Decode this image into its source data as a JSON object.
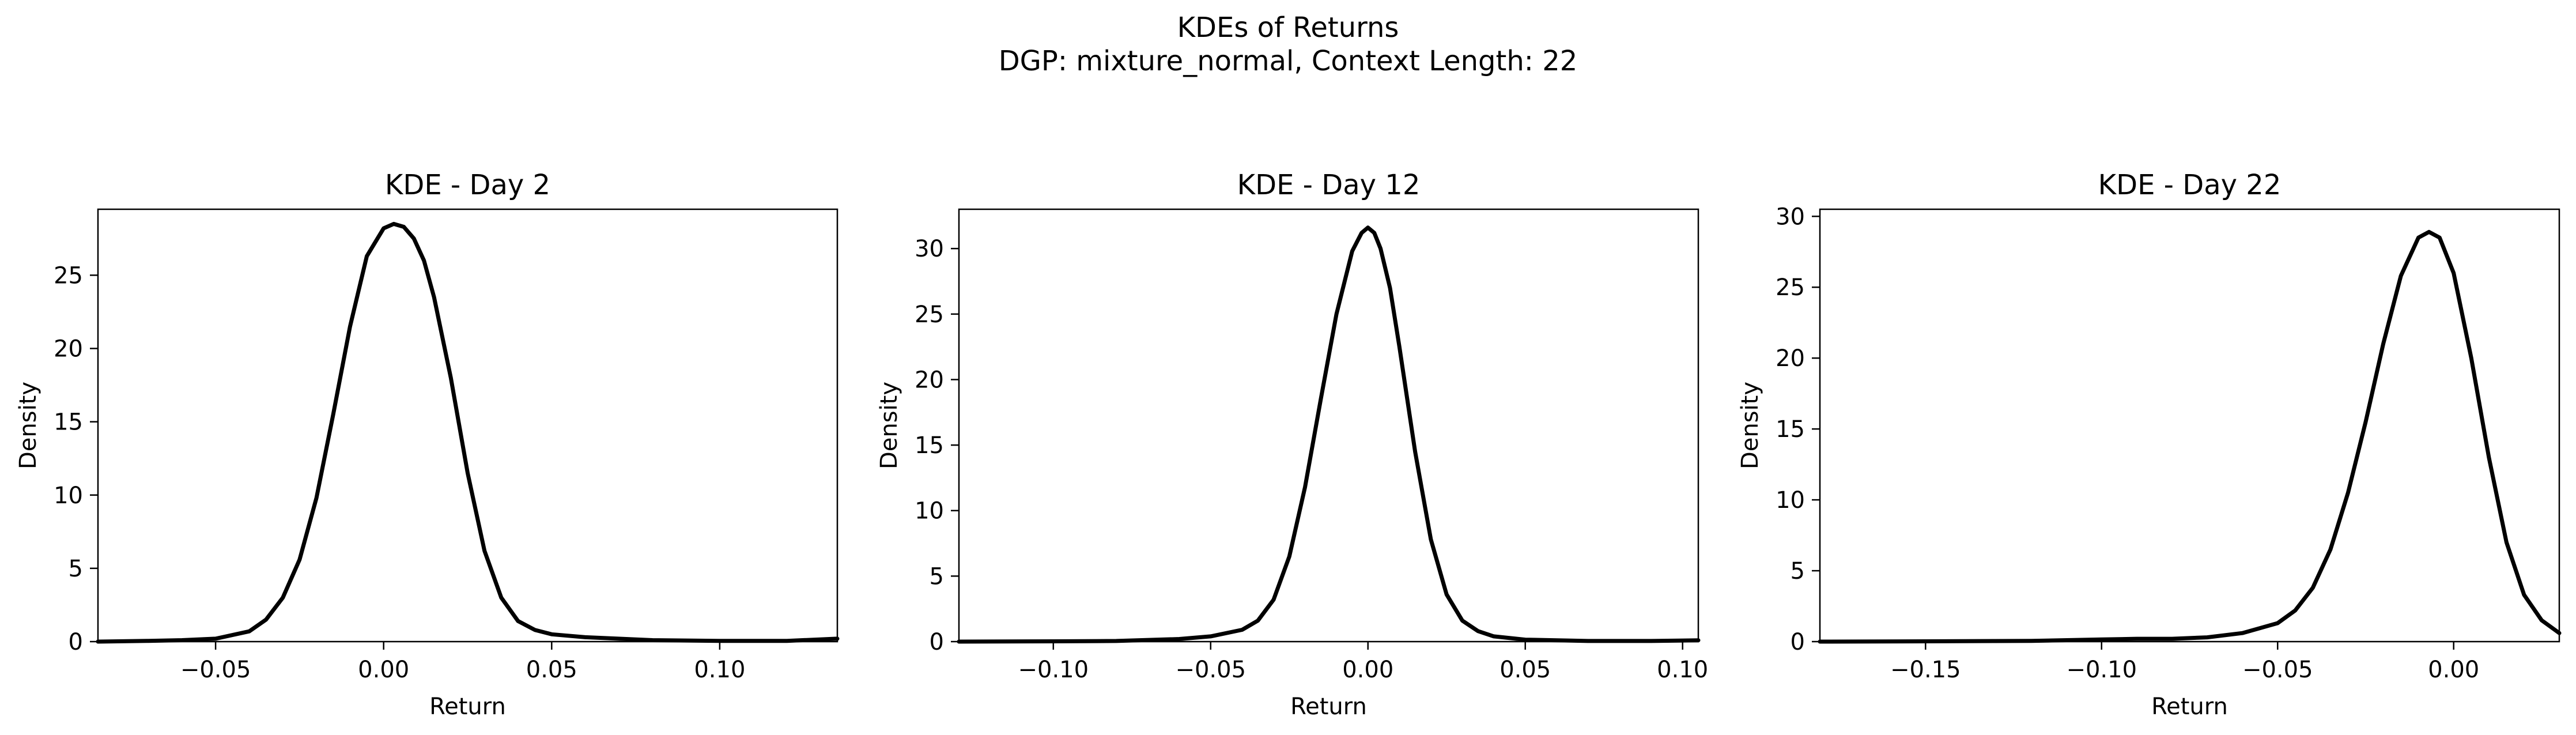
{
  "figure": {
    "title_line1": "KDEs of Returns",
    "title_line2": "DGP: mixture_normal, Context Length: 22"
  },
  "chart_data": [
    {
      "type": "line",
      "title": "KDE - Day 2",
      "xlabel": "Return",
      "ylabel": "Density",
      "xlim": [
        -0.085,
        0.135
      ],
      "ylim": [
        0,
        29.5
      ],
      "xticks": [
        -0.05,
        0.0,
        0.05,
        0.1
      ],
      "xtick_labels": [
        "−0.05",
        "0.00",
        "0.05",
        "0.10"
      ],
      "yticks": [
        0,
        5,
        10,
        15,
        20,
        25
      ],
      "ytick_labels": [
        "0",
        "5",
        "10",
        "15",
        "20",
        "25"
      ],
      "grid": false,
      "series": [
        {
          "color": "#000000",
          "x": [
            -0.085,
            -0.07,
            -0.06,
            -0.05,
            -0.04,
            -0.035,
            -0.03,
            -0.025,
            -0.02,
            -0.015,
            -0.01,
            -0.005,
            0.0,
            0.003,
            0.006,
            0.009,
            0.012,
            0.015,
            0.02,
            0.025,
            0.03,
            0.035,
            0.04,
            0.045,
            0.05,
            0.06,
            0.08,
            0.1,
            0.12,
            0.135
          ],
          "y": [
            0.0,
            0.05,
            0.1,
            0.2,
            0.7,
            1.5,
            3.0,
            5.6,
            9.8,
            15.5,
            21.5,
            26.3,
            28.2,
            28.5,
            28.3,
            27.5,
            26.0,
            23.5,
            18.0,
            11.5,
            6.2,
            3.0,
            1.4,
            0.8,
            0.5,
            0.3,
            0.1,
            0.05,
            0.05,
            0.2
          ]
        }
      ]
    },
    {
      "type": "line",
      "title": "KDE - Day 12",
      "xlabel": "Return",
      "ylabel": "Density",
      "xlim": [
        -0.13,
        0.105
      ],
      "ylim": [
        0,
        33
      ],
      "xticks": [
        -0.1,
        -0.05,
        0.0,
        0.05,
        0.1
      ],
      "xtick_labels": [
        "−0.10",
        "−0.05",
        "0.00",
        "0.05",
        "0.10"
      ],
      "yticks": [
        0,
        5,
        10,
        15,
        20,
        25,
        30
      ],
      "ytick_labels": [
        "0",
        "5",
        "10",
        "15",
        "20",
        "25",
        "30"
      ],
      "grid": false,
      "series": [
        {
          "color": "#000000",
          "x": [
            -0.13,
            -0.1,
            -0.08,
            -0.06,
            -0.05,
            -0.04,
            -0.035,
            -0.03,
            -0.025,
            -0.02,
            -0.015,
            -0.01,
            -0.005,
            -0.002,
            0.0,
            0.002,
            0.004,
            0.007,
            0.01,
            0.015,
            0.02,
            0.025,
            0.03,
            0.035,
            0.04,
            0.05,
            0.07,
            0.09,
            0.105
          ],
          "y": [
            0.0,
            0.02,
            0.05,
            0.2,
            0.4,
            0.9,
            1.6,
            3.2,
            6.5,
            11.8,
            18.5,
            25.0,
            29.8,
            31.2,
            31.6,
            31.2,
            30.0,
            27.0,
            22.5,
            14.5,
            7.8,
            3.6,
            1.6,
            0.8,
            0.4,
            0.15,
            0.05,
            0.05,
            0.1
          ]
        }
      ]
    },
    {
      "type": "line",
      "title": "KDE - Day 22",
      "xlabel": "Return",
      "ylabel": "Density",
      "xlim": [
        -0.18,
        0.03
      ],
      "ylim": [
        0,
        30.5
      ],
      "xticks": [
        -0.15,
        -0.1,
        -0.05,
        0.0
      ],
      "xtick_labels": [
        "−0.15",
        "−0.10",
        "−0.05",
        "0.00"
      ],
      "yticks": [
        0,
        5,
        10,
        15,
        20,
        25,
        30
      ],
      "ytick_labels": [
        "0",
        "5",
        "10",
        "15",
        "20",
        "25",
        "30"
      ],
      "grid": false,
      "series": [
        {
          "color": "#000000",
          "x": [
            -0.18,
            -0.15,
            -0.12,
            -0.1,
            -0.09,
            -0.08,
            -0.07,
            -0.06,
            -0.05,
            -0.045,
            -0.04,
            -0.035,
            -0.03,
            -0.025,
            -0.02,
            -0.015,
            -0.01,
            -0.007,
            -0.004,
            0.0,
            0.005,
            0.01,
            0.015,
            0.02,
            0.025,
            0.03
          ],
          "y": [
            0.0,
            0.02,
            0.05,
            0.15,
            0.2,
            0.2,
            0.3,
            0.6,
            1.3,
            2.2,
            3.8,
            6.5,
            10.5,
            15.5,
            21.0,
            25.8,
            28.5,
            28.9,
            28.5,
            26.0,
            20.0,
            13.0,
            7.0,
            3.3,
            1.5,
            0.6
          ]
        }
      ]
    }
  ]
}
